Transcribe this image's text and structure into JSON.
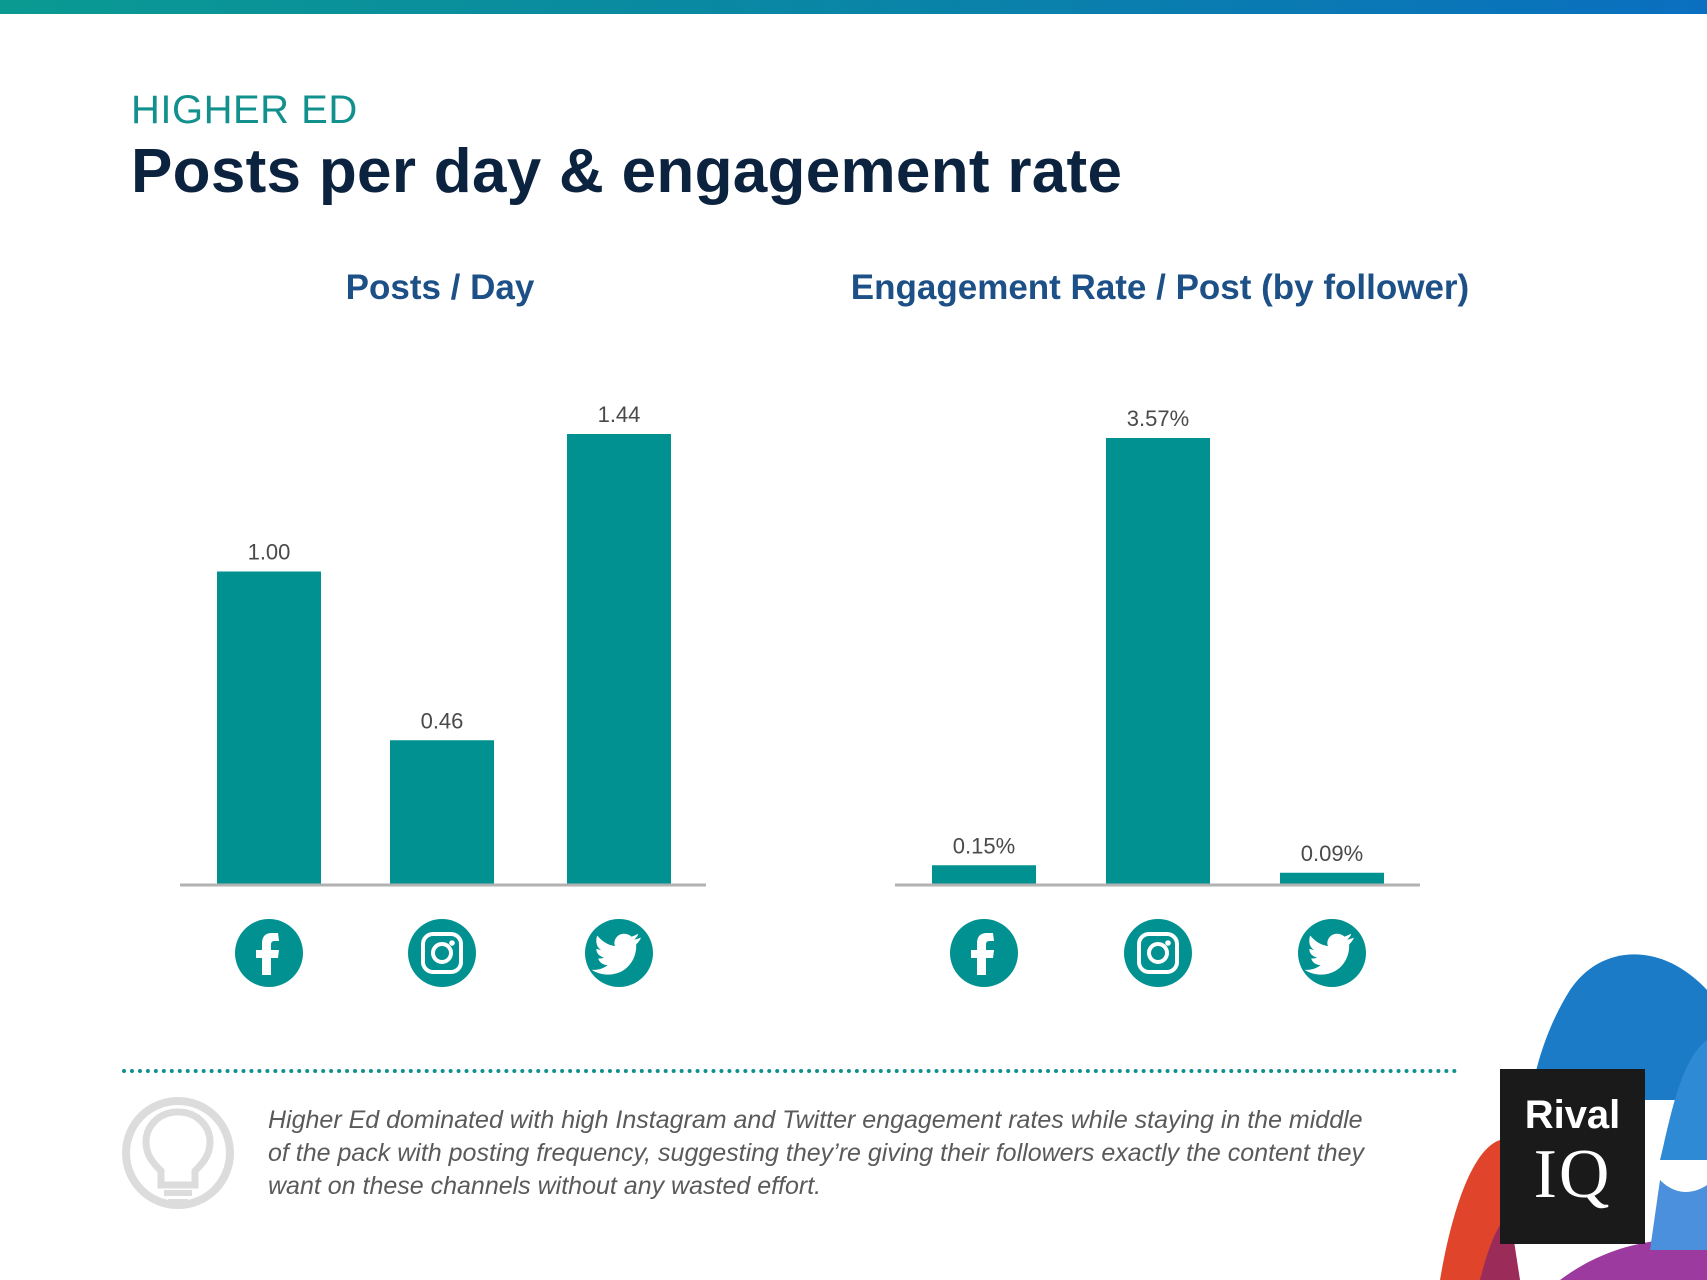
{
  "header": {
    "kicker": "HIGHER ED",
    "title": "Posts per day & engagement rate"
  },
  "chart_data": [
    {
      "type": "bar",
      "title": "Posts / Day",
      "categories": [
        "facebook-icon",
        "instagram-icon",
        "twitter-icon"
      ],
      "values": [
        1.0,
        0.46,
        1.44
      ],
      "labels": [
        "1.00",
        "0.46",
        "1.44"
      ],
      "ylim": [
        0,
        1.44
      ],
      "grid": false,
      "color": "#009190"
    },
    {
      "type": "bar",
      "title": "Engagement Rate / Post (by follower)",
      "categories": [
        "facebook-icon",
        "instagram-icon",
        "twitter-icon"
      ],
      "values": [
        0.15,
        3.57,
        0.09
      ],
      "labels": [
        "0.15%",
        "3.57%",
        "0.09%"
      ],
      "ylim": [
        0,
        3.57
      ],
      "grid": false,
      "color": "#009190"
    }
  ],
  "insight": {
    "icon": "lightbulb-icon",
    "text": "Higher Ed dominated with high Instagram and Twitter engagement rates while staying in the middle of the pack with posting frequency, suggesting they’re giving their followers exactly the content they want on these channels without any wasted effort."
  },
  "logo": {
    "line1": "Rival",
    "line2": "IQ"
  },
  "colors": {
    "accent": "#009190",
    "title": "#0c2340",
    "chart_title": "#1d5086",
    "kicker": "#12908d"
  }
}
